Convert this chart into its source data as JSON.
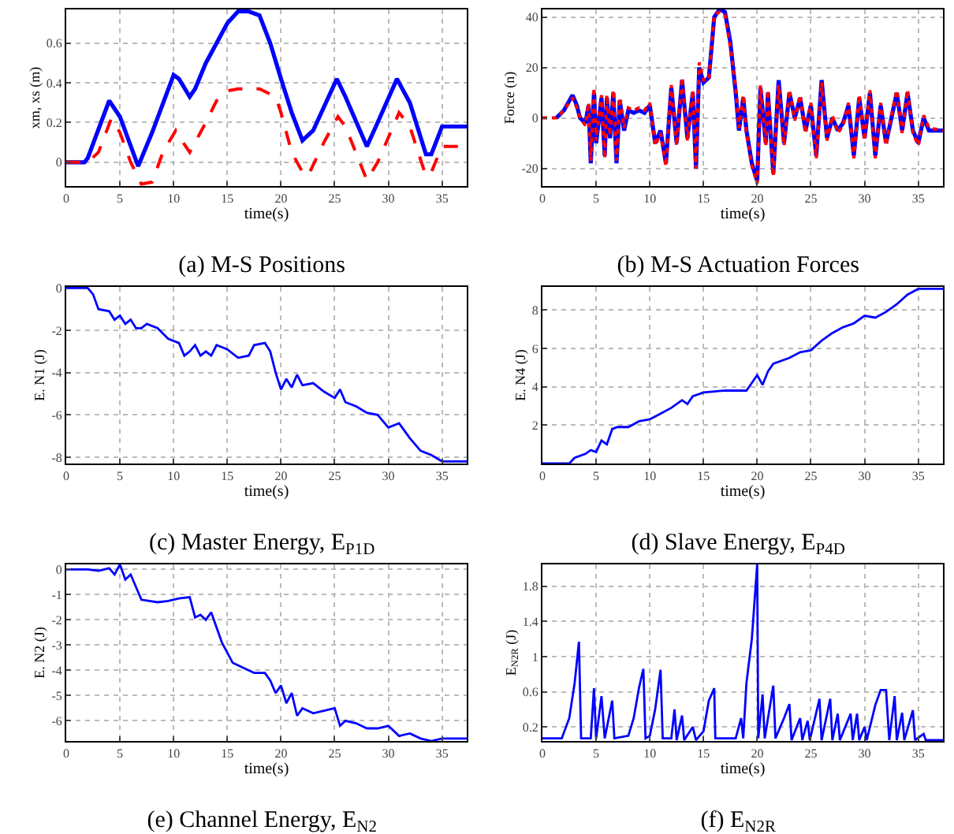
{
  "chart_data": [
    {
      "type": "line",
      "title": "(a) M-S Positions",
      "xlabel": "time(s)",
      "ylabel": "xm, xs (m)",
      "xlim": [
        0,
        37.3
      ],
      "xticks": [
        0,
        5,
        10,
        15,
        20,
        25,
        30,
        35
      ],
      "ylim": [
        -0.12,
        0.77
      ],
      "yticks": [
        0,
        0.2,
        0.4,
        0.6
      ],
      "grid": true,
      "series": [
        {
          "color": "#0000ff",
          "line_style": "solid",
          "x": [
            0,
            1.7,
            2,
            4,
            5,
            6.7,
            8,
            10,
            10.5,
            11.5,
            12,
            13,
            14,
            15,
            16,
            17,
            18,
            19,
            20,
            21,
            22,
            23,
            25.2,
            26,
            28,
            29,
            30.8,
            32,
            33.5,
            34,
            35,
            37.3
          ],
          "values": [
            0,
            0,
            0.02,
            0.31,
            0.23,
            -0.02,
            0.15,
            0.44,
            0.42,
            0.33,
            0.37,
            0.5,
            0.6,
            0.7,
            0.76,
            0.76,
            0.74,
            0.6,
            0.42,
            0.25,
            0.11,
            0.16,
            0.42,
            0.33,
            0.08,
            0.2,
            0.42,
            0.3,
            0.04,
            0.04,
            0.18,
            0.18
          ]
        },
        {
          "color": "#ff0000",
          "line_style": "dashed",
          "x": [
            0,
            2,
            3,
            4.2,
            5,
            6,
            7,
            8,
            9,
            10.2,
            11,
            11.5,
            12,
            13,
            14,
            15,
            16,
            18,
            19.5,
            20,
            21,
            22,
            22.5,
            24,
            25.3,
            26,
            28,
            29,
            31,
            32,
            33.5,
            34,
            35,
            37.3
          ],
          "values": [
            0,
            0,
            0.05,
            0.22,
            0.15,
            0,
            -0.11,
            -0.1,
            0.05,
            0.16,
            0.09,
            0.05,
            0.1,
            0.2,
            0.31,
            0.36,
            0.37,
            0.37,
            0.33,
            0.25,
            0.05,
            -0.05,
            -0.07,
            0.1,
            0.23,
            0.18,
            -0.09,
            0,
            0.25,
            0.18,
            -0.07,
            -0.05,
            0.08,
            0.08
          ]
        }
      ]
    },
    {
      "type": "line",
      "title": "(b) M-S Actuation Forces",
      "xlabel": "time(s)",
      "ylabel": "Force (n)",
      "xlim": [
        0,
        37.3
      ],
      "xticks": [
        0,
        5,
        10,
        15,
        20,
        25,
        30,
        35
      ],
      "ylim": [
        -27,
        43
      ],
      "yticks": [
        -20,
        0,
        20,
        40
      ],
      "grid": true,
      "series": [
        {
          "color": "#0000ff",
          "line_style": "solid",
          "x": [
            1.3,
            2,
            2.8,
            3.2,
            3.5,
            4,
            4.3,
            4.5,
            4.8,
            5,
            5.5,
            5.8,
            6,
            6.3,
            6.6,
            6.9,
            7.2,
            7.6,
            8,
            8.5,
            9,
            9.5,
            10,
            10.5,
            11,
            11.5,
            12,
            12.5,
            13,
            13.5,
            14,
            14.3,
            14.6,
            15,
            15.5,
            16,
            16.5,
            17,
            17.5,
            18,
            18.3,
            18.7,
            19,
            19.5,
            20,
            20.3,
            20.8,
            21,
            21.5,
            22,
            22.5,
            23,
            23.5,
            24,
            24.5,
            25,
            25.5,
            26,
            26.5,
            27,
            27.5,
            28,
            28.5,
            29,
            29.5,
            30,
            30.5,
            31,
            31.5,
            32,
            32.5,
            33,
            33.5,
            34,
            34.5,
            35,
            35.5,
            36,
            37.3
          ],
          "values": [
            0,
            3,
            9,
            5,
            0,
            -2,
            5,
            -18,
            10,
            -10,
            8,
            -15,
            8,
            -8,
            10,
            -18,
            7,
            -5,
            3,
            2,
            3,
            2,
            5,
            -10,
            -5,
            -18,
            12,
            -10,
            15,
            -8,
            10,
            -20,
            20,
            14,
            16,
            40,
            43,
            42,
            30,
            10,
            -5,
            8,
            -5,
            -18,
            -25,
            12,
            -10,
            10,
            -22,
            15,
            -10,
            10,
            0,
            8,
            -5,
            5,
            -15,
            15,
            -8,
            0,
            -5,
            -2,
            5,
            -15,
            8,
            -8,
            10,
            -15,
            5,
            -10,
            0,
            10,
            -5,
            10,
            -5,
            -10,
            0,
            -5,
            -5
          ]
        },
        {
          "color": "#ff0000",
          "line_style": "dotted",
          "x": [
            0,
            1.3,
            2,
            2.8,
            3.2,
            3.5,
            4,
            4.3,
            4.5,
            4.8,
            5,
            5.5,
            5.8,
            6,
            6.3,
            6.6,
            6.9,
            7.2,
            7.6,
            8,
            8.5,
            9,
            9.5,
            10,
            10.5,
            11,
            11.5,
            12,
            12.5,
            13,
            13.5,
            14,
            14.3,
            14.6,
            15,
            15.5,
            16,
            16.5,
            17,
            17.5,
            18,
            18.3,
            18.7,
            19,
            19.5,
            20,
            20.3,
            20.8,
            21,
            21.5,
            22,
            22.5,
            23,
            23.5,
            24,
            24.5,
            25,
            25.5,
            26,
            26.5,
            27,
            27.5,
            28,
            28.5,
            29,
            29.5,
            30,
            30.5,
            31,
            31.5,
            32,
            32.5,
            33,
            33.5,
            34,
            34.5,
            35,
            35.5,
            36,
            37.3
          ],
          "values": [
            0,
            0,
            3,
            8,
            4,
            0,
            -3,
            6,
            -17,
            12,
            -9,
            9,
            -16,
            9,
            -7,
            11,
            -17,
            8,
            -4,
            4,
            3,
            4,
            3,
            6,
            -11,
            -6,
            -19,
            13,
            -11,
            16,
            -9,
            11,
            -20,
            22,
            15,
            15,
            41,
            42,
            41,
            28,
            12,
            -4,
            9,
            -6,
            -19,
            -26,
            13,
            -11,
            11,
            -23,
            13,
            -11,
            11,
            -1,
            9,
            -6,
            6,
            -16,
            14,
            -9,
            1,
            -6,
            -3,
            6,
            -16,
            9,
            -9,
            11,
            -16,
            6,
            -11,
            1,
            11,
            -6,
            11,
            -6,
            -11,
            1,
            -4,
            -5
          ]
        }
      ]
    },
    {
      "type": "line",
      "title": "(c) Master Energy, E$_{P1D}$",
      "xlabel": "time(s)",
      "ylabel": "E. N1 (J)",
      "xlim": [
        0,
        37.3
      ],
      "xticks": [
        0,
        5,
        10,
        15,
        20,
        25,
        30,
        35
      ],
      "ylim": [
        -8.3,
        0.05
      ],
      "yticks": [
        0,
        -2,
        -4,
        -6,
        -8
      ],
      "grid": true,
      "series": [
        {
          "color": "#0000ff",
          "line_style": "solid",
          "x": [
            0,
            2,
            2.5,
            3,
            4,
            4.5,
            5,
            5.5,
            6,
            6.5,
            7,
            7.5,
            8.5,
            9.5,
            10.5,
            11,
            11.5,
            12,
            12.5,
            13,
            13.5,
            14,
            15,
            16,
            17,
            17.5,
            18.5,
            19,
            19.5,
            20,
            20.5,
            21,
            21.5,
            22,
            23,
            24,
            25,
            25.5,
            26,
            27,
            28,
            29,
            30,
            31,
            32,
            33,
            34,
            35,
            37.3
          ],
          "values": [
            0,
            0,
            -0.3,
            -1,
            -1.1,
            -1.5,
            -1.3,
            -1.7,
            -1.5,
            -1.9,
            -1.9,
            -1.7,
            -1.9,
            -2.4,
            -2.6,
            -3.2,
            -3,
            -2.7,
            -3.2,
            -3,
            -3.2,
            -2.7,
            -2.9,
            -3.3,
            -3.2,
            -2.7,
            -2.6,
            -3,
            -4,
            -4.8,
            -4.3,
            -4.7,
            -4.1,
            -4.6,
            -4.5,
            -4.9,
            -5.2,
            -4.8,
            -5.4,
            -5.6,
            -5.9,
            -6,
            -6.6,
            -6.4,
            -7.1,
            -7.7,
            -7.9,
            -8.2,
            -8.2
          ]
        }
      ]
    },
    {
      "type": "line",
      "title": "(d) Slave Energy, E$_{P4D}$",
      "xlabel": "time(s)",
      "ylabel": "E. N4 (J)",
      "xlim": [
        0,
        37.3
      ],
      "xticks": [
        0,
        5,
        10,
        15,
        20,
        25,
        30,
        35
      ],
      "ylim": [
        0,
        9.2
      ],
      "yticks": [
        2,
        4,
        6,
        8
      ],
      "grid": true,
      "series": [
        {
          "color": "#0000ff",
          "line_style": "solid",
          "x": [
            0,
            2.5,
            3,
            4,
            4.5,
            5,
            5.5,
            6,
            6.5,
            7,
            8,
            9,
            10,
            11,
            12,
            13,
            13.5,
            14,
            15,
            17,
            19,
            19.5,
            20,
            20.5,
            21,
            21.5,
            23,
            24,
            25,
            26,
            27,
            28,
            29,
            30,
            31,
            32,
            33,
            34,
            35,
            37.3
          ],
          "values": [
            0,
            0,
            0.3,
            0.5,
            0.7,
            0.6,
            1.2,
            1,
            1.8,
            1.9,
            1.9,
            2.2,
            2.3,
            2.6,
            2.9,
            3.3,
            3.1,
            3.5,
            3.7,
            3.8,
            3.8,
            4.2,
            4.6,
            4.1,
            4.8,
            5.2,
            5.5,
            5.8,
            5.9,
            6.4,
            6.8,
            7.1,
            7.3,
            7.7,
            7.6,
            7.9,
            8.3,
            8.8,
            9.1,
            9.1
          ]
        }
      ]
    },
    {
      "type": "line",
      "title": "(e) Channel Energy, E$_{N2}$",
      "xlabel": "time(s)",
      "ylabel": "E. N2 (J)",
      "xlim": [
        0,
        37.3
      ],
      "xticks": [
        0,
        5,
        10,
        15,
        20,
        25,
        30,
        35
      ],
      "ylim": [
        -6.8,
        0.2
      ],
      "yticks": [
        0,
        -1,
        -2,
        -3,
        -4,
        -5,
        -6
      ],
      "grid": true,
      "series": [
        {
          "color": "#0000ff",
          "line_style": "solid",
          "x": [
            0,
            2,
            3,
            4,
            4.5,
            5,
            5.5,
            6,
            6.5,
            7,
            8.5,
            9.5,
            10.5,
            11.5,
            12,
            12.5,
            13,
            13.5,
            14,
            14.5,
            15.5,
            16.5,
            17.5,
            18.5,
            19,
            19.5,
            20,
            20.5,
            21,
            21.5,
            22,
            23,
            24,
            25,
            25.5,
            26,
            27,
            28,
            29,
            30,
            31,
            32,
            33,
            34,
            35,
            37.3
          ],
          "values": [
            0,
            0,
            -0.05,
            0.05,
            -0.2,
            0.2,
            -0.4,
            -0.2,
            -0.7,
            -1.2,
            -1.3,
            -1.25,
            -1.15,
            -1.1,
            -1.9,
            -1.8,
            -2,
            -1.7,
            -2.3,
            -2.9,
            -3.7,
            -3.9,
            -4.1,
            -4.1,
            -4.4,
            -4.9,
            -4.6,
            -5.3,
            -4.9,
            -5.8,
            -5.5,
            -5.7,
            -5.6,
            -5.5,
            -6.2,
            -6,
            -6.1,
            -6.3,
            -6.3,
            -6.2,
            -6.6,
            -6.5,
            -6.7,
            -6.8,
            -6.7,
            -6.7
          ]
        }
      ]
    },
    {
      "type": "line",
      "title": "(f) E$_{N2R}$",
      "xlabel": "time(s)",
      "ylabel": "E$_{N2R}$ (J)",
      "xlim": [
        0,
        37.3
      ],
      "xticks": [
        0,
        5,
        10,
        15,
        20,
        25,
        30,
        35
      ],
      "ylim": [
        0.04,
        2.05
      ],
      "yticks": [
        0.2,
        0.6,
        1,
        1.4,
        1.8
      ],
      "grid": true,
      "series": [
        {
          "color": "#0000ff",
          "line_style": "solid",
          "x": [
            0,
            1.8,
            2.5,
            3,
            3.4,
            3.6,
            4.5,
            4.8,
            5,
            5.5,
            5.8,
            6.5,
            6.7,
            8,
            8.5,
            9,
            9.4,
            9.6,
            10,
            10.5,
            11,
            11.2,
            12,
            12.3,
            12.5,
            13,
            13.2,
            14,
            14.3,
            15,
            15.5,
            16,
            16.1,
            18,
            18.5,
            18.7,
            19,
            19.5,
            20,
            20.1,
            20.5,
            20.7,
            21.5,
            21.7,
            22.5,
            23,
            23.2,
            24,
            24.2,
            24.7,
            24.9,
            25.8,
            26,
            26.8,
            27,
            27.5,
            27.7,
            28.7,
            28.9,
            29.3,
            29.5,
            30,
            30.2,
            31,
            31.5,
            32,
            32.3,
            32.8,
            33,
            33.5,
            33.7,
            34.5,
            34.7,
            35.5,
            35.7,
            37.3
          ],
          "values": [
            0.07,
            0.07,
            0.3,
            0.7,
            1.17,
            0.07,
            0.07,
            0.64,
            0.07,
            0.55,
            0.07,
            0.5,
            0.07,
            0.1,
            0.3,
            0.65,
            0.86,
            0.07,
            0.1,
            0.4,
            0.85,
            0.07,
            0.07,
            0.4,
            0.05,
            0.33,
            0.05,
            0.2,
            0.05,
            0.15,
            0.5,
            0.64,
            0.07,
            0.07,
            0.3,
            0.07,
            0.7,
            1.2,
            2.05,
            0.07,
            0.57,
            0.07,
            0.67,
            0.07,
            0.3,
            0.46,
            0.05,
            0.3,
            0.05,
            0.27,
            0.05,
            0.52,
            0.05,
            0.52,
            0.05,
            0.35,
            0.05,
            0.35,
            0.05,
            0.35,
            0.05,
            0.2,
            0.05,
            0.45,
            0.62,
            0.62,
            0.05,
            0.55,
            0.05,
            0.36,
            0.05,
            0.39,
            0.05,
            0.12,
            0.05,
            0.05
          ]
        }
      ]
    }
  ]
}
